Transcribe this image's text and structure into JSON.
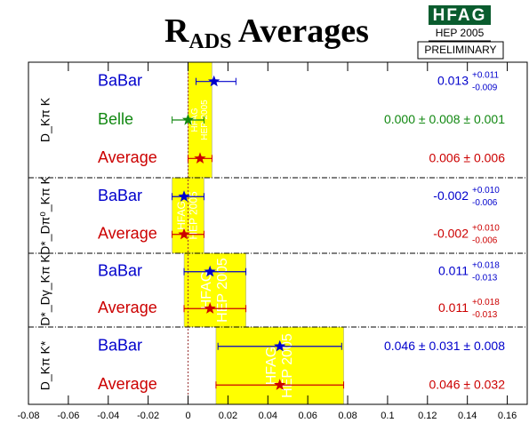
{
  "chart_data": {
    "type": "forest",
    "title": [
      "R",
      "ADS",
      " Averages"
    ],
    "logo": {
      "top": "HFAG",
      "middle": "HEP 2005",
      "bottom": "PRELIMINARY"
    },
    "band_labels": [
      "HFAG",
      "HEP 2005"
    ],
    "band_color": "#ffff00",
    "xlim": [
      -0.08,
      0.17
    ],
    "xticks": [
      {
        "value": -0.08,
        "label": "-0.08"
      },
      {
        "value": -0.06,
        "label": "-0.06"
      },
      {
        "value": -0.04,
        "label": "-0.04"
      },
      {
        "value": -0.02,
        "label": "-0.02"
      },
      0,
      {
        "value": 0.02,
        "label": "0.02"
      },
      {
        "value": 0.04,
        "label": "0.04"
      },
      {
        "value": 0.06,
        "label": "0.06"
      },
      {
        "value": 0.08,
        "label": "0.08"
      },
      0.1,
      {
        "value": 0.12,
        "label": "0.12"
      },
      {
        "value": 0.14,
        "label": "0.14"
      },
      {
        "value": 0.16,
        "label": "0.16"
      }
    ],
    "groups": [
      {
        "label": "D_Kπ K",
        "band": 0.006,
        "band_err": 0.006,
        "rows": [
          {
            "name": "BaBar",
            "color": "#0000cc",
            "value": 0.013,
            "plus": 0.011,
            "minus": 0.009,
            "plus_label": "+0.011",
            "minus_label": "-0.009"
          },
          {
            "name": "Belle",
            "color": "#118811",
            "value": 0,
            "value_label": "0.000",
            "plus": 0.008,
            "minus": 0.008,
            "stat_label": "± 0.008",
            "syst": 0.001,
            "syst_label": "± 0.001"
          },
          {
            "name": "Average",
            "color": "#cc0000",
            "value": 0.006,
            "plus": 0.006,
            "minus": 0.006,
            "stat_label": "± 0.006"
          }
        ]
      },
      {
        "label": "D*_Dπ⁰_Kπ K",
        "band": 0,
        "band_err": 0.008,
        "rows": [
          {
            "name": "BaBar",
            "color": "#0000cc",
            "value": -0.002,
            "plus": 0.01,
            "minus": 0.006,
            "plus_label": "+0.010",
            "minus_label": "-0.006"
          },
          {
            "name": "Average",
            "color": "#cc0000",
            "value": -0.002,
            "plus": 0.01,
            "minus": 0.006,
            "plus_label": "+0.010",
            "minus_label": "-0.006"
          }
        ]
      },
      {
        "label": "D*_Dγ_Kπ K",
        "band": 0.0135,
        "band_err": 0.0155,
        "rows": [
          {
            "name": "BaBar",
            "color": "#0000cc",
            "value": 0.011,
            "plus": 0.018,
            "minus": 0.013,
            "plus_label": "+0.018",
            "minus_label": "-0.013"
          },
          {
            "name": "Average",
            "color": "#cc0000",
            "value": 0.011,
            "plus": 0.018,
            "minus": 0.013,
            "plus_label": "+0.018",
            "minus_label": "-0.013"
          }
        ]
      },
      {
        "label": "D_Kπ K*",
        "band": 0.046,
        "band_err": 0.032,
        "rows": [
          {
            "name": "BaBar",
            "color": "#0000cc",
            "value": 0.046,
            "plus": 0.031,
            "minus": 0.031,
            "stat_label": "± 0.031",
            "syst": 0.008,
            "syst_label": "± 0.008"
          },
          {
            "name": "Average",
            "color": "#cc0000",
            "value": 0.046,
            "plus": 0.032,
            "minus": 0.032,
            "stat_label": "± 0.032"
          }
        ]
      }
    ]
  }
}
